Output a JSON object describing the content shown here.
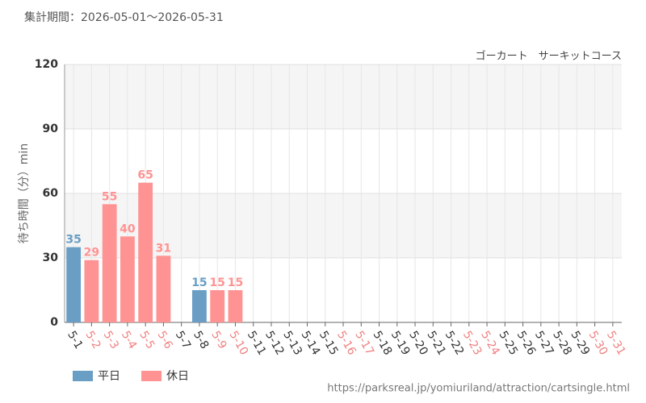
{
  "period": "集計期間：2026-05-01～2026-05-31",
  "source": "https://parksreal.jp/yomiuriland/attraction/cartsingle.html",
  "chart_data": {
    "type": "bar",
    "subtitle": "ゴーカート　サーキットコース",
    "y_label": "待ち時間（分）min",
    "categories": [
      "5-1",
      "5-2",
      "5-3",
      "5-4",
      "5-5",
      "5-6",
      "5-7",
      "5-8",
      "5-9",
      "5-10",
      "5-11",
      "5-12",
      "5-13",
      "5-14",
      "5-15",
      "5-16",
      "5-17",
      "5-18",
      "5-19",
      "5-20",
      "5-21",
      "5-22",
      "5-23",
      "5-24",
      "5-25",
      "5-26",
      "5-27",
      "5-28",
      "5-29",
      "5-30",
      "5-31"
    ],
    "category_label_colors": [
      "#333333",
      "#f08080",
      "#f08080",
      "#f08080",
      "#f08080",
      "#f08080",
      "#333333",
      "#333333",
      "#f08080",
      "#f08080",
      "#333333",
      "#333333",
      "#333333",
      "#333333",
      "#333333",
      "#f08080",
      "#f08080",
      "#333333",
      "#333333",
      "#333333",
      "#333333",
      "#333333",
      "#f08080",
      "#f08080",
      "#333333",
      "#333333",
      "#333333",
      "#333333",
      "#333333",
      "#f08080",
      "#f08080"
    ],
    "series": [
      {
        "name": "平日",
        "color": "#6a9ec5",
        "values": [
          35,
          null,
          null,
          null,
          null,
          null,
          null,
          15,
          null,
          null,
          null,
          null,
          null,
          null,
          null,
          null,
          null,
          null,
          null,
          null,
          null,
          null,
          null,
          null,
          null,
          null,
          null,
          null,
          null,
          null,
          null
        ]
      },
      {
        "name": "休日",
        "color": "#ff9393",
        "values": [
          null,
          29,
          55,
          40,
          65,
          31,
          null,
          null,
          15,
          15,
          null,
          null,
          null,
          null,
          null,
          null,
          null,
          null,
          null,
          null,
          null,
          null,
          null,
          null,
          null,
          null,
          null,
          null,
          null,
          null,
          null
        ]
      }
    ],
    "ylim": [
      0,
      120
    ],
    "yticks": [
      0,
      30,
      60,
      90,
      120
    ],
    "grid": true
  }
}
